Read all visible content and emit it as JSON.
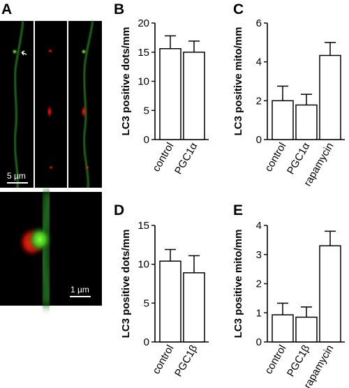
{
  "figure": {
    "panel_labels": {
      "A": "A",
      "B": "B",
      "C": "C",
      "D": "D",
      "E": "E"
    },
    "micrograph": {
      "scale_bar_top": "5 µm",
      "scale_bar_bottom": "1 µm",
      "colors": {
        "green": "#2f8f2a",
        "red": "#e01010",
        "background": "#000000"
      }
    }
  },
  "chart_data": [
    {
      "id": "B",
      "type": "bar",
      "categories": [
        "control",
        "PGC1α"
      ],
      "values": [
        15.6,
        15.0
      ],
      "errors": [
        2.2,
        1.9
      ],
      "ylabel": "LC3 positive dots/mm",
      "ylim": [
        0,
        20
      ],
      "yticks": [
        0,
        5,
        10,
        15,
        20
      ]
    },
    {
      "id": "C",
      "type": "bar",
      "categories": [
        "control",
        "PGC1α",
        "rapamycin"
      ],
      "values": [
        2.0,
        1.78,
        4.33
      ],
      "errors": [
        0.75,
        0.55,
        0.67
      ],
      "ylabel": "LC3 positive mito/mm",
      "ylim": [
        0,
        6
      ],
      "yticks": [
        0,
        2,
        4,
        6
      ]
    },
    {
      "id": "D",
      "type": "bar",
      "categories": [
        "control",
        "PGC1β"
      ],
      "values": [
        10.4,
        8.9
      ],
      "errors": [
        1.5,
        2.2
      ],
      "ylabel": "LC3 positive dots/mm",
      "ylim": [
        0,
        15
      ],
      "yticks": [
        0,
        5,
        10,
        15
      ]
    },
    {
      "id": "E",
      "type": "bar",
      "categories": [
        "control",
        "PGC1β",
        "rapamycin"
      ],
      "values": [
        0.93,
        0.85,
        3.3
      ],
      "errors": [
        0.4,
        0.35,
        0.5
      ],
      "ylabel": "LC3 positive mito/mm",
      "ylim": [
        0,
        4
      ],
      "yticks": [
        0,
        1,
        2,
        3,
        4
      ]
    }
  ]
}
